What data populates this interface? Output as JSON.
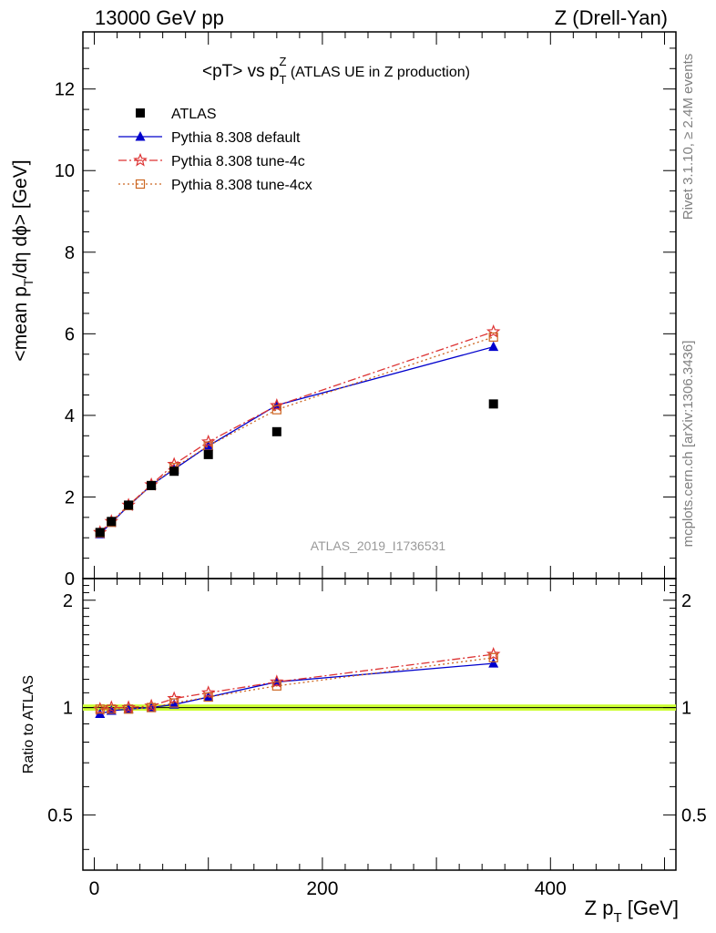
{
  "header": {
    "left": "13000 GeV pp",
    "right": "Z (Drell-Yan)"
  },
  "side_labels": {
    "rivet": "Rivet 3.1.10, ≥ 2.4M events",
    "mcplots": "mcplots.cern.ch [arXiv:1306.3436]"
  },
  "colors": {
    "atlas": "#000000",
    "default": "#0000cc",
    "tune4c": "#dd3333",
    "tune4cx": "#cc6622",
    "ref_band": "#ccff33",
    "watermark": "#999999",
    "side_text": "#808080"
  },
  "chart_data": {
    "type": "line",
    "title_main": "<pT> vs p",
    "title_sup": "Z",
    "title_sub": "T",
    "title_tail": " (ATLAS UE in Z production)",
    "analysis_label": "ATLAS_2019_I1736531",
    "xlabel_main": "Z p",
    "xlabel_sub": "T",
    "xlabel_tail": " [GeV]",
    "ylabel_prefix": "<mean p",
    "ylabel_sub": "T",
    "ylabel_tail": "/dη dϕ> [GeV]",
    "ratio_ylabel": "Ratio to ATLAS",
    "xlim": [
      -10,
      510
    ],
    "ylim": [
      0,
      13.4
    ],
    "ratio_ylim": [
      0.35,
      2.3
    ],
    "x_ticks": [
      "0",
      "200",
      "400"
    ],
    "y_ticks": [
      "0",
      "2",
      "4",
      "6",
      "8",
      "10",
      "12"
    ],
    "ratio_ticks": [
      "0.5",
      "1",
      "2"
    ],
    "legend_position": "top-left",
    "x": [
      5,
      15,
      30,
      50,
      70,
      100,
      160,
      350
    ],
    "series": [
      {
        "name": "ATLAS",
        "key": "atlas",
        "marker": "square",
        "values": [
          1.13,
          1.4,
          1.8,
          2.28,
          2.63,
          3.04,
          3.6,
          4.28
        ],
        "ratio": [
          1,
          1,
          1,
          1,
          1,
          1,
          1,
          1
        ]
      },
      {
        "name": "Pythia 8.308 default",
        "key": "default",
        "marker": "triangle",
        "dash": "",
        "values": [
          1.09,
          1.37,
          1.78,
          2.29,
          2.68,
          3.25,
          4.25,
          5.68
        ],
        "ratio": [
          0.96,
          0.98,
          0.99,
          1.0,
          1.02,
          1.07,
          1.18,
          1.33
        ]
      },
      {
        "name": "Pythia 8.308 tune-4c",
        "key": "tune4c",
        "marker": "star",
        "dash": "9,3,2,3",
        "values": [
          1.13,
          1.4,
          1.8,
          2.3,
          2.8,
          3.35,
          4.24,
          6.05
        ],
        "ratio": [
          0.99,
          1.0,
          1.0,
          1.01,
          1.06,
          1.1,
          1.18,
          1.41
        ]
      },
      {
        "name": "Pythia 8.308 tune-4cx",
        "key": "tune4cx",
        "marker": "open-square",
        "dash": "2,3",
        "values": [
          1.12,
          1.38,
          1.79,
          2.28,
          2.72,
          3.25,
          4.14,
          5.92
        ],
        "ratio": [
          0.99,
          0.99,
          0.99,
          1.0,
          1.03,
          1.07,
          1.15,
          1.38
        ]
      }
    ]
  }
}
